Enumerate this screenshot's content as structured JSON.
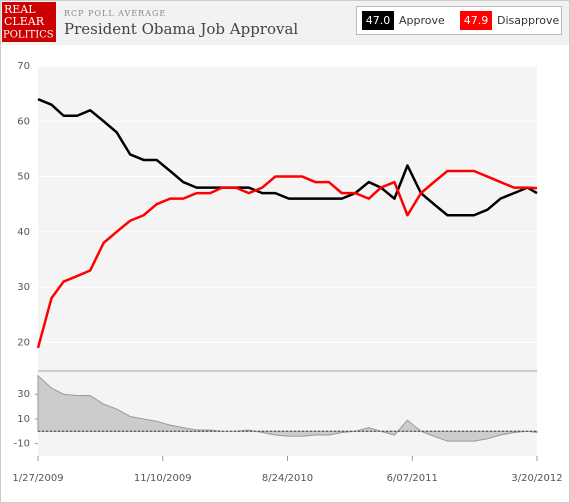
{
  "header": {
    "logo": [
      "REAL",
      "CLEAR",
      "POLITICS"
    ],
    "overline": "RCP POLL AVERAGE",
    "title": "President Obama Job Approval"
  },
  "chart_data": [
    {
      "type": "line",
      "x": [
        "2009-01-27",
        "2009-02-27",
        "2009-03-27",
        "2009-04-27",
        "2009-05-27",
        "2009-06-27",
        "2009-07-27",
        "2009-08-27",
        "2009-09-27",
        "2009-10-27",
        "2009-11-27",
        "2009-12-27",
        "2010-01-27",
        "2010-02-27",
        "2010-03-27",
        "2010-04-27",
        "2010-05-27",
        "2010-06-27",
        "2010-07-27",
        "2010-08-27",
        "2010-09-27",
        "2010-10-27",
        "2010-11-27",
        "2010-12-27",
        "2011-01-27",
        "2011-02-27",
        "2011-03-27",
        "2011-04-27",
        "2011-05-27",
        "2011-06-27",
        "2011-07-27",
        "2011-08-27",
        "2011-09-27",
        "2011-10-27",
        "2011-11-27",
        "2011-12-27",
        "2012-01-27",
        "2012-02-27",
        "2012-03-20"
      ],
      "series": [
        {
          "name": "Approve",
          "color": "#000000",
          "current": {
            "value": 47.0,
            "label": "47.0"
          },
          "values": [
            64,
            63,
            61,
            61,
            62,
            60,
            58,
            54,
            53,
            53,
            51,
            49,
            48,
            48,
            48,
            48,
            48,
            47,
            47,
            46,
            46,
            46,
            46,
            46,
            47,
            49,
            48,
            46,
            52,
            47,
            45,
            43,
            43,
            43,
            44,
            46,
            47,
            48,
            47.0
          ]
        },
        {
          "name": "Disapprove",
          "color": "#ff0000",
          "current": {
            "value": 47.9,
            "label": "47.9"
          },
          "values": [
            19,
            28,
            31,
            32,
            33,
            38,
            40,
            42,
            43,
            45,
            46,
            46,
            47,
            47,
            48,
            48,
            47,
            48,
            50,
            50,
            50,
            49,
            49,
            47,
            47,
            46,
            48,
            49,
            43,
            47,
            49,
            51,
            51,
            51,
            50,
            49,
            48,
            48,
            47.9
          ]
        }
      ],
      "xlim": [
        "2009-01-27",
        "2012-03-20"
      ],
      "ylim": [
        15,
        70
      ],
      "yticks": [
        20,
        30,
        40,
        50,
        60,
        70
      ],
      "grid": true
    },
    {
      "type": "area",
      "x": [
        "2009-01-27",
        "2009-02-27",
        "2009-03-27",
        "2009-04-27",
        "2009-05-27",
        "2009-06-27",
        "2009-07-27",
        "2009-08-27",
        "2009-09-27",
        "2009-10-27",
        "2009-11-27",
        "2009-12-27",
        "2010-01-27",
        "2010-02-27",
        "2010-03-27",
        "2010-04-27",
        "2010-05-27",
        "2010-06-27",
        "2010-07-27",
        "2010-08-27",
        "2010-09-27",
        "2010-10-27",
        "2010-11-27",
        "2010-12-27",
        "2011-01-27",
        "2011-02-27",
        "2011-03-27",
        "2011-04-27",
        "2011-05-27",
        "2011-06-27",
        "2011-07-27",
        "2011-08-27",
        "2011-09-27",
        "2011-10-27",
        "2011-11-27",
        "2011-12-27",
        "2012-01-27",
        "2012-02-27",
        "2012-03-20"
      ],
      "values": [
        45,
        35,
        30,
        29,
        29,
        22,
        18,
        12,
        10,
        8,
        5,
        3,
        1,
        1,
        0,
        0,
        1,
        -1,
        -3,
        -4,
        -4,
        -3,
        -3,
        -1,
        0,
        3,
        0,
        -3,
        9,
        0,
        -4,
        -8,
        -8,
        -8,
        -6,
        -3,
        -1,
        0,
        -0.9
      ],
      "color": "#cccccc",
      "xlim": [
        "2009-01-27",
        "2012-03-20"
      ],
      "xticks": [
        {
          "value": "2009-01-27",
          "label": "1/27/2009"
        },
        {
          "value": "2009-11-10",
          "label": "11/10/2009"
        },
        {
          "value": "2010-08-24",
          "label": "8/24/2010"
        },
        {
          "value": "2011-06-07",
          "label": "6/07/2011"
        },
        {
          "value": "2012-03-20",
          "label": "3/20/2012"
        }
      ],
      "ylim": [
        -20,
        48
      ],
      "yticks": [
        -10,
        10,
        30
      ]
    }
  ]
}
